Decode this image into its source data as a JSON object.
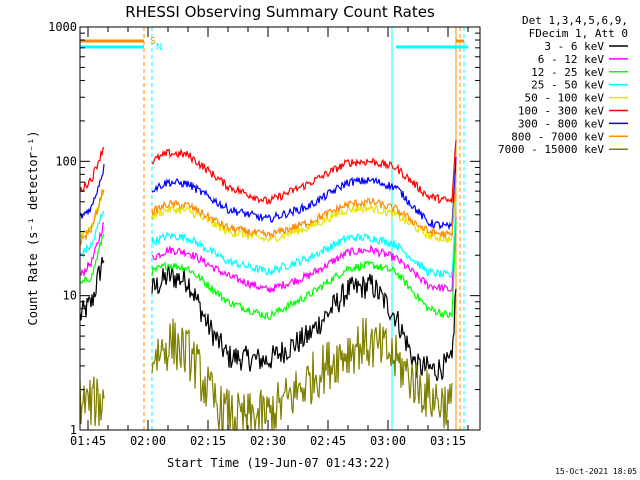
{
  "chart_data": {
    "type": "line",
    "title": "RHESSI Observing Summary Count Rates",
    "xlabel": "Start Time (19-Jun-07 01:43:22)",
    "ylabel": "Count Rate (s⁻¹ detector⁻¹)",
    "y_scale": "log",
    "ylim": [
      1,
      1000
    ],
    "y_ticks": [
      {
        "value": 1,
        "label": "1"
      },
      {
        "value": 10,
        "label": "10"
      },
      {
        "value": 100,
        "label": "100"
      },
      {
        "value": 1000,
        "label": "1000"
      }
    ],
    "xlim": [
      "01:43",
      "03:23"
    ],
    "x_ticks": [
      "01:45",
      "02:00",
      "02:15",
      "02:30",
      "02:45",
      "03:00",
      "03:15"
    ],
    "legend": {
      "placement": "top-right-outside",
      "header": [
        "Det 1,3,4,5,6,9,",
        "FDecim 1, Att 0"
      ],
      "entries": [
        {
          "label": "3 - 6 keV",
          "color": "#000000"
        },
        {
          "label": "6 - 12 keV",
          "color": "#ff00ff"
        },
        {
          "label": "12 - 25 keV",
          "color": "#00ff00"
        },
        {
          "label": "25 - 50 keV",
          "color": "#00ffff"
        },
        {
          "label": "50 - 100 keV",
          "color": "#e6e600"
        },
        {
          "label": "100 - 300 keV",
          "color": "#ff0000"
        },
        {
          "label": "300 - 800 keV",
          "color": "#0000ff"
        },
        {
          "label": "800 - 7000 keV",
          "color": "#ff8c00"
        },
        {
          "label": "7000 - 15000 keV",
          "color": "#808000"
        }
      ]
    },
    "flags": [
      {
        "label": "S",
        "color": "#ff8c00",
        "intervals": [
          [
            "01:43",
            "01:59"
          ],
          [
            "03:17",
            "03:19"
          ]
        ]
      },
      {
        "label": "N",
        "color": "#00ffff",
        "intervals": [
          [
            "01:43",
            "01:59"
          ],
          [
            "03:02",
            "03:20"
          ]
        ]
      }
    ],
    "marker_lines": [
      {
        "time": "01:43",
        "color": "#00ffff",
        "style": "solid"
      },
      {
        "time": "01:59",
        "color": "#ff8c00",
        "style": "dashed"
      },
      {
        "time": "02:01",
        "color": "#00ffff",
        "style": "dashed"
      },
      {
        "time": "03:01",
        "color": "#00ffff",
        "style": "solid"
      },
      {
        "time": "03:17",
        "color": "#ff8c00",
        "style": "solid"
      },
      {
        "time": "03:18",
        "color": "#ff8c00",
        "style": "dashed"
      },
      {
        "time": "03:19",
        "color": "#00ffff",
        "style": "dashed"
      }
    ],
    "segments": [
      {
        "start": "01:43",
        "end": "01:49"
      },
      {
        "start": "02:01",
        "end": "03:17"
      }
    ],
    "series": [
      {
        "name": "3 - 6 keV",
        "color": "#000000",
        "points": [
          [
            "01:43",
            7
          ],
          [
            "01:46",
            9
          ],
          [
            "01:49",
            20
          ],
          [
            "02:01",
            11
          ],
          [
            "02:05",
            14
          ],
          [
            "02:10",
            13
          ],
          [
            "02:15",
            6
          ],
          [
            "02:20",
            3.5
          ],
          [
            "02:30",
            3.3
          ],
          [
            "02:40",
            5
          ],
          [
            "02:50",
            11
          ],
          [
            "02:56",
            12
          ],
          [
            "03:02",
            7
          ],
          [
            "03:07",
            3
          ],
          [
            "03:12",
            2.8
          ],
          [
            "03:16",
            3.2
          ],
          [
            "03:17",
            12
          ]
        ]
      },
      {
        "name": "6 - 12 keV",
        "color": "#ff00ff",
        "points": [
          [
            "01:43",
            14
          ],
          [
            "01:46",
            18
          ],
          [
            "01:49",
            35
          ],
          [
            "02:01",
            19
          ],
          [
            "02:05",
            22
          ],
          [
            "02:10",
            21
          ],
          [
            "02:20",
            14
          ],
          [
            "02:30",
            11
          ],
          [
            "02:40",
            14
          ],
          [
            "02:50",
            21
          ],
          [
            "02:56",
            22
          ],
          [
            "03:02",
            19
          ],
          [
            "03:10",
            12
          ],
          [
            "03:16",
            11
          ],
          [
            "03:17",
            40
          ]
        ]
      },
      {
        "name": "12 - 25 keV",
        "color": "#00ff00",
        "points": [
          [
            "01:43",
            12
          ],
          [
            "01:46",
            14
          ],
          [
            "01:49",
            30
          ],
          [
            "02:01",
            15
          ],
          [
            "02:05",
            17
          ],
          [
            "02:10",
            16
          ],
          [
            "02:20",
            9
          ],
          [
            "02:30",
            7
          ],
          [
            "02:40",
            10
          ],
          [
            "02:50",
            16
          ],
          [
            "02:56",
            17
          ],
          [
            "03:02",
            15
          ],
          [
            "03:10",
            8
          ],
          [
            "03:16",
            7
          ],
          [
            "03:17",
            35
          ]
        ]
      },
      {
        "name": "25 - 50 keV",
        "color": "#00ffff",
        "points": [
          [
            "01:43",
            20
          ],
          [
            "01:46",
            24
          ],
          [
            "01:49",
            45
          ],
          [
            "02:01",
            25
          ],
          [
            "02:05",
            28
          ],
          [
            "02:10",
            27
          ],
          [
            "02:20",
            18
          ],
          [
            "02:30",
            15
          ],
          [
            "02:40",
            19
          ],
          [
            "02:50",
            27
          ],
          [
            "02:56",
            27
          ],
          [
            "03:02",
            24
          ],
          [
            "03:10",
            15
          ],
          [
            "03:16",
            14
          ],
          [
            "03:17",
            50
          ]
        ]
      },
      {
        "name": "50 - 100 keV",
        "color": "#e6e600",
        "points": [
          [
            "01:43",
            28
          ],
          [
            "01:46",
            33
          ],
          [
            "01:49",
            60
          ],
          [
            "02:01",
            39
          ],
          [
            "02:05",
            44
          ],
          [
            "02:10",
            43
          ],
          [
            "02:20",
            30
          ],
          [
            "02:30",
            26
          ],
          [
            "02:40",
            32
          ],
          [
            "02:50",
            44
          ],
          [
            "02:56",
            45
          ],
          [
            "03:02",
            40
          ],
          [
            "03:10",
            28
          ],
          [
            "03:16",
            26
          ],
          [
            "03:17",
            70
          ]
        ]
      },
      {
        "name": "100 - 300 keV",
        "color": "#ff0000",
        "points": [
          [
            "01:43",
            60
          ],
          [
            "01:46",
            75
          ],
          [
            "01:49",
            130
          ],
          [
            "02:01",
            100
          ],
          [
            "02:05",
            115
          ],
          [
            "02:10",
            112
          ],
          [
            "02:20",
            65
          ],
          [
            "02:30",
            50
          ],
          [
            "02:40",
            68
          ],
          [
            "02:50",
            98
          ],
          [
            "02:56",
            100
          ],
          [
            "03:02",
            90
          ],
          [
            "03:10",
            55
          ],
          [
            "03:16",
            50
          ],
          [
            "03:17",
            150
          ]
        ]
      },
      {
        "name": "300 - 800 keV",
        "color": "#0000ff",
        "points": [
          [
            "01:43",
            38
          ],
          [
            "01:46",
            46
          ],
          [
            "01:49",
            90
          ],
          [
            "02:01",
            62
          ],
          [
            "02:05",
            70
          ],
          [
            "02:10",
            68
          ],
          [
            "02:20",
            44
          ],
          [
            "02:30",
            37
          ],
          [
            "02:40",
            46
          ],
          [
            "02:50",
            70
          ],
          [
            "02:56",
            72
          ],
          [
            "03:02",
            64
          ],
          [
            "03:10",
            35
          ],
          [
            "03:16",
            32
          ],
          [
            "03:17",
            110
          ]
        ]
      },
      {
        "name": "800 - 7000 keV",
        "color": "#ff8c00",
        "points": [
          [
            "01:43",
            25
          ],
          [
            "01:46",
            32
          ],
          [
            "01:49",
            65
          ],
          [
            "02:01",
            42
          ],
          [
            "02:05",
            48
          ],
          [
            "02:10",
            47
          ],
          [
            "02:20",
            32
          ],
          [
            "02:30",
            28
          ],
          [
            "02:40",
            35
          ],
          [
            "02:50",
            48
          ],
          [
            "02:56",
            50
          ],
          [
            "03:02",
            44
          ],
          [
            "03:10",
            30
          ],
          [
            "03:16",
            28
          ],
          [
            "03:17",
            80
          ]
        ]
      },
      {
        "name": "7000 - 15000 keV",
        "color": "#808000",
        "points": [
          [
            "01:43",
            1.6
          ],
          [
            "01:49",
            1.6
          ],
          [
            "02:01",
            3.5
          ],
          [
            "02:06",
            4.5
          ],
          [
            "02:11",
            3.5
          ],
          [
            "02:14",
            2.2
          ],
          [
            "02:18",
            1.4
          ],
          [
            "02:23",
            1.2
          ],
          [
            "02:30",
            1.3
          ],
          [
            "02:36",
            1.8
          ],
          [
            "02:42",
            2.6
          ],
          [
            "02:48",
            3.6
          ],
          [
            "02:54",
            4.5
          ],
          [
            "03:00",
            3.8
          ],
          [
            "03:05",
            2.6
          ],
          [
            "03:10",
            1.8
          ],
          [
            "03:16",
            1.5
          ]
        ]
      }
    ]
  },
  "footer": {
    "timestamp": "15-Oct-2021 18:05"
  }
}
